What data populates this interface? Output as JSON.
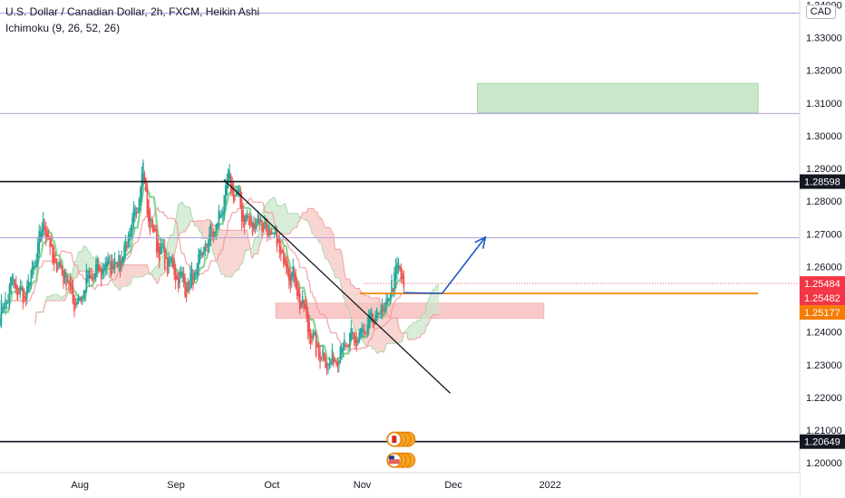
{
  "header": {
    "symbol_line": "U.S. Dollar / Canadian Dollar, 2h, FXCM, Heikin Ashi",
    "indicator_line": "Ichimoku (9, 26, 52, 26)",
    "currency_badge": "CAD"
  },
  "colors": {
    "bull": "#26a69a",
    "bear": "#ef5350",
    "tenkan": "#7ccf8a",
    "kijun": "#ef9a9a",
    "cloud_bear": "#f5c6c0",
    "cloud_bull": "#c8e6c9",
    "horizontal_lavender": "#b39ddb",
    "horizontal_black": "#131722",
    "orange_line": "#f57c00",
    "blue_arrow": "#1e56c8",
    "demand_zone_fill": "#f7b7b7",
    "target_zone_fill": "#c8e6c9",
    "price_badge_red": "#f23645",
    "price_badge_orange": "#f57c00",
    "price_badge_dark": "#131722"
  },
  "chart_data": {
    "type": "candlestick",
    "title": "U.S. Dollar / Canadian Dollar, 2h, FXCM, Heikin Ashi",
    "indicator": "Ichimoku (9, 26, 52, 26)",
    "y_axis": {
      "min": 1.197,
      "max": 1.3415,
      "ticks": [
        "1.20000",
        "1.21000",
        "1.22000",
        "1.23000",
        "1.24000",
        "1.25000",
        "1.26000",
        "1.27000",
        "1.28000",
        "1.29000",
        "1.30000",
        "1.31000",
        "1.32000",
        "1.33000",
        "1.34000"
      ]
    },
    "x_axis": {
      "labels": [
        {
          "label": "Aug",
          "t": 0.1
        },
        {
          "label": "Sep",
          "t": 0.22
        },
        {
          "label": "Oct",
          "t": 0.34
        },
        {
          "label": "Nov",
          "t": 0.453
        },
        {
          "label": "Dec",
          "t": 0.567
        },
        {
          "label": "2022",
          "t": 0.688
        }
      ]
    },
    "price_path": [
      [
        0.0,
        1.245
      ],
      [
        0.015,
        1.255
      ],
      [
        0.03,
        1.25
      ],
      [
        0.045,
        1.262
      ],
      [
        0.055,
        1.275
      ],
      [
        0.065,
        1.262
      ],
      [
        0.08,
        1.258
      ],
      [
        0.095,
        1.248
      ],
      [
        0.11,
        1.256
      ],
      [
        0.13,
        1.26
      ],
      [
        0.15,
        1.262
      ],
      [
        0.16,
        1.268
      ],
      [
        0.17,
        1.276
      ],
      [
        0.178,
        1.292
      ],
      [
        0.185,
        1.275
      ],
      [
        0.195,
        1.268
      ],
      [
        0.205,
        1.262
      ],
      [
        0.215,
        1.26
      ],
      [
        0.225,
        1.256
      ],
      [
        0.235,
        1.254
      ],
      [
        0.245,
        1.258
      ],
      [
        0.255,
        1.266
      ],
      [
        0.265,
        1.27
      ],
      [
        0.275,
        1.275
      ],
      [
        0.285,
        1.286
      ],
      [
        0.295,
        1.282
      ],
      [
        0.305,
        1.275
      ],
      [
        0.315,
        1.272
      ],
      [
        0.325,
        1.275
      ],
      [
        0.335,
        1.27
      ],
      [
        0.345,
        1.268
      ],
      [
        0.355,
        1.262
      ],
      [
        0.365,
        1.258
      ],
      [
        0.375,
        1.25
      ],
      [
        0.385,
        1.242
      ],
      [
        0.395,
        1.235
      ],
      [
        0.405,
        1.232
      ],
      [
        0.415,
        1.23
      ],
      [
        0.425,
        1.235
      ],
      [
        0.435,
        1.236
      ],
      [
        0.445,
        1.238
      ],
      [
        0.455,
        1.24
      ],
      [
        0.465,
        1.243
      ],
      [
        0.475,
        1.246
      ],
      [
        0.485,
        1.248
      ],
      [
        0.49,
        1.255
      ],
      [
        0.495,
        1.259
      ],
      [
        0.5,
        1.258
      ],
      [
        0.505,
        1.2548
      ]
    ],
    "horizontal_lines": [
      {
        "name": "upper-lavender",
        "price": 1.3375,
        "style": "lavender"
      },
      {
        "name": "mid-lavender",
        "price": 1.3068,
        "style": "lavender"
      },
      {
        "name": "resistance-black",
        "price": 1.28598,
        "style": "black",
        "label": "1.28598"
      },
      {
        "name": "pivot-lavender",
        "price": 1.2688,
        "style": "lavender"
      },
      {
        "name": "support-black",
        "price": 1.20649,
        "style": "black",
        "label": "1.20649"
      }
    ],
    "price_badges": [
      {
        "label": "1.25484",
        "price": 1.25484,
        "color": "red"
      },
      {
        "label": "1.25482",
        "price": 1.25482,
        "color": "red"
      },
      {
        "label": "1.25177",
        "price": 1.25177,
        "color": "orange"
      }
    ],
    "zones": [
      {
        "name": "demand-zone",
        "t0": 0.345,
        "t1": 0.68,
        "price_top": 1.2488,
        "price_bottom": 1.2442,
        "fill": "red"
      },
      {
        "name": "target-zone",
        "t0": 0.597,
        "t1": 0.948,
        "price_top": 1.316,
        "price_bottom": 1.307,
        "fill": "green"
      }
    ],
    "trendline": {
      "t0": 0.28,
      "p0": 1.2865,
      "t1": 0.563,
      "p1": 1.2213
    },
    "orange_level": {
      "t0": 0.45,
      "t1": 0.948,
      "price": 1.2518
    },
    "projection_arrow": [
      {
        "t": 0.505,
        "p": 1.252
      },
      {
        "t": 0.553,
        "p": 1.2518
      },
      {
        "t": 0.607,
        "p": 1.269
      }
    ],
    "event_markers": [
      {
        "name": "canada-event",
        "t": 0.51,
        "price": 1.2072
      },
      {
        "name": "us-event",
        "t": 0.51,
        "price": 1.2008
      }
    ]
  }
}
